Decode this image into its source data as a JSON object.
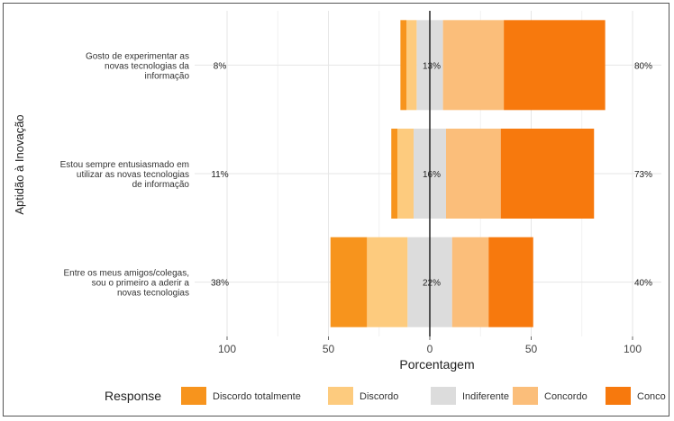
{
  "chart_data": {
    "type": "bar",
    "subtype": "diverging-stacked-likert",
    "title": "",
    "xlabel": "Porcentagem",
    "ylabel": "Aptidão à Inovação",
    "xlim": [
      -100,
      100
    ],
    "xticks": [
      -100,
      -50,
      0,
      50,
      100
    ],
    "xtick_labels": [
      "100",
      "50",
      "0",
      "50",
      "100"
    ],
    "grid": true,
    "legend_position": "bottom",
    "legend_title": "Response",
    "categories": [
      "Gosto de experimentar as novas tecnologias da informação",
      "Estou sempre entusiasmado em utilizar as novas tecnologias de informação",
      "Entre os meus amigos/colegas, sou o primeiro a aderir a novas tecnologias"
    ],
    "category_lines": [
      [
        "Gosto de experimentar as",
        "novas tecnologias da",
        "informação"
      ],
      [
        "Estou sempre entusiasmado em",
        "utilizar as novas tecnologias",
        "de informação"
      ],
      [
        "Entre os meus amigos/colegas,",
        "sou o primeiro a aderir a",
        "novas tecnologias"
      ]
    ],
    "series": [
      {
        "name": "Discordo totalmente",
        "color": "#F7941D",
        "values": [
          3,
          3,
          18
        ]
      },
      {
        "name": "Discordo",
        "color": "#FDCB7E",
        "values": [
          5,
          8,
          20
        ]
      },
      {
        "name": "Indiferente",
        "color": "#DCDCDC",
        "values": [
          13,
          16,
          22
        ]
      },
      {
        "name": "Concordo",
        "color": "#FBBE7A",
        "values": [
          30,
          27,
          18
        ]
      },
      {
        "name": "Concordo totalmente",
        "color": "#F7790D",
        "values": [
          50,
          46,
          22
        ]
      }
    ],
    "legend_labels": [
      "Discordo totalmente",
      "Discordo",
      "Indiferente",
      "Concordo",
      "Conco"
    ],
    "left_labels": [
      "8%",
      "11%",
      "38%"
    ],
    "center_labels": [
      "13%",
      "16%",
      "22%"
    ],
    "right_labels": [
      "80%",
      "73%",
      "40%"
    ]
  }
}
